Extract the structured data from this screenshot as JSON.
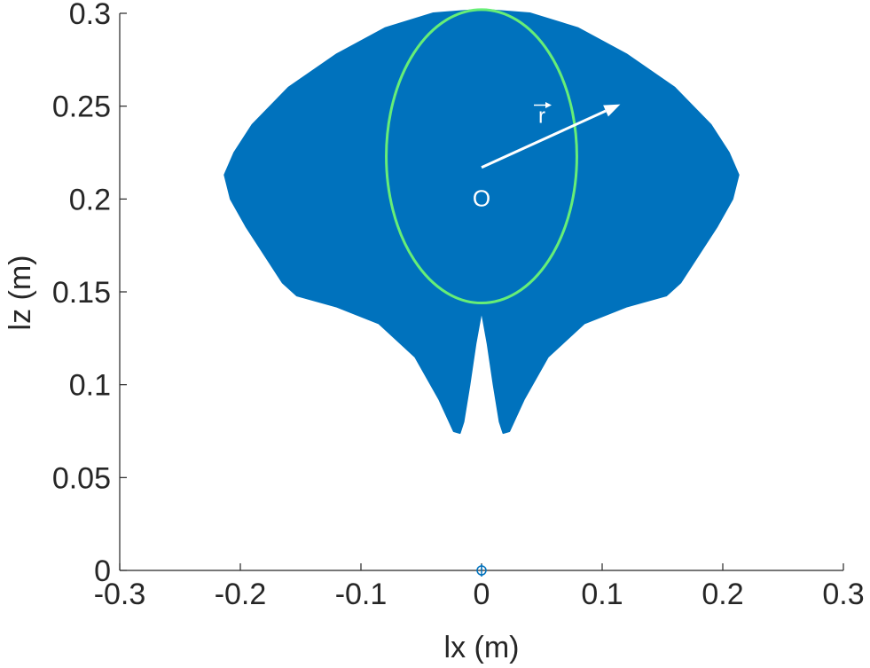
{
  "chart_data": {
    "type": "scatter",
    "title": "",
    "xlabel": "lx (m)",
    "ylabel": "lz (m)",
    "xlim": [
      -0.3,
      0.3
    ],
    "ylim": [
      0,
      0.3
    ],
    "xticks": [
      -0.3,
      -0.2,
      -0.1,
      0,
      0.1,
      0.2,
      0.3
    ],
    "yticks": [
      0,
      0.05,
      0.1,
      0.15,
      0.2,
      0.25,
      0.3
    ],
    "xtick_labels": [
      "-0.3",
      "-0.2",
      "-0.1",
      "0",
      "0.1",
      "0.2",
      "0.3"
    ],
    "ytick_labels": [
      "0",
      "0.05",
      "0.1",
      "0.15",
      "0.2",
      "0.25",
      "0.3"
    ],
    "grid": false,
    "workspace_region": {
      "color": "#0072bd",
      "outline": [
        [
          0.0,
          0.302
        ],
        [
          0.04,
          0.3
        ],
        [
          0.08,
          0.292
        ],
        [
          0.12,
          0.278
        ],
        [
          0.16,
          0.26
        ],
        [
          0.19,
          0.24
        ],
        [
          0.205,
          0.225
        ],
        [
          0.213,
          0.213
        ],
        [
          0.208,
          0.2
        ],
        [
          0.195,
          0.185
        ],
        [
          0.18,
          0.17
        ],
        [
          0.165,
          0.155
        ],
        [
          0.153,
          0.148
        ],
        [
          0.12,
          0.142
        ],
        [
          0.085,
          0.133
        ],
        [
          0.055,
          0.115
        ],
        [
          0.035,
          0.092
        ],
        [
          0.023,
          0.075
        ],
        [
          0.018,
          0.074
        ],
        [
          0.015,
          0.08
        ],
        [
          0.01,
          0.1
        ],
        [
          0.005,
          0.122
        ],
        [
          0.0,
          0.14
        ],
        [
          -0.005,
          0.122
        ],
        [
          -0.01,
          0.1
        ],
        [
          -0.015,
          0.08
        ],
        [
          -0.018,
          0.074
        ],
        [
          -0.023,
          0.075
        ],
        [
          -0.035,
          0.092
        ],
        [
          -0.055,
          0.115
        ],
        [
          -0.085,
          0.133
        ],
        [
          -0.12,
          0.142
        ],
        [
          -0.153,
          0.148
        ],
        [
          -0.165,
          0.155
        ],
        [
          -0.18,
          0.17
        ],
        [
          -0.195,
          0.185
        ],
        [
          -0.208,
          0.2
        ],
        [
          -0.213,
          0.213
        ],
        [
          -0.205,
          0.225
        ],
        [
          -0.19,
          0.24
        ],
        [
          -0.16,
          0.26
        ],
        [
          -0.12,
          0.278
        ],
        [
          -0.08,
          0.292
        ],
        [
          -0.04,
          0.3
        ]
      ]
    },
    "inscribed_circle": {
      "center": [
        0.0,
        0.223
      ],
      "radius": 0.079,
      "color": "#66ee77"
    },
    "radius_vector": {
      "label": "r",
      "from": [
        0.0,
        0.217
      ],
      "to": [
        0.115,
        0.251
      ],
      "color": "#ffffff"
    },
    "center_label": {
      "text": "O",
      "position": [
        0.0,
        0.2
      ]
    },
    "base_marker": {
      "position": [
        0.0,
        0.0
      ],
      "color": "#0072bd"
    }
  }
}
